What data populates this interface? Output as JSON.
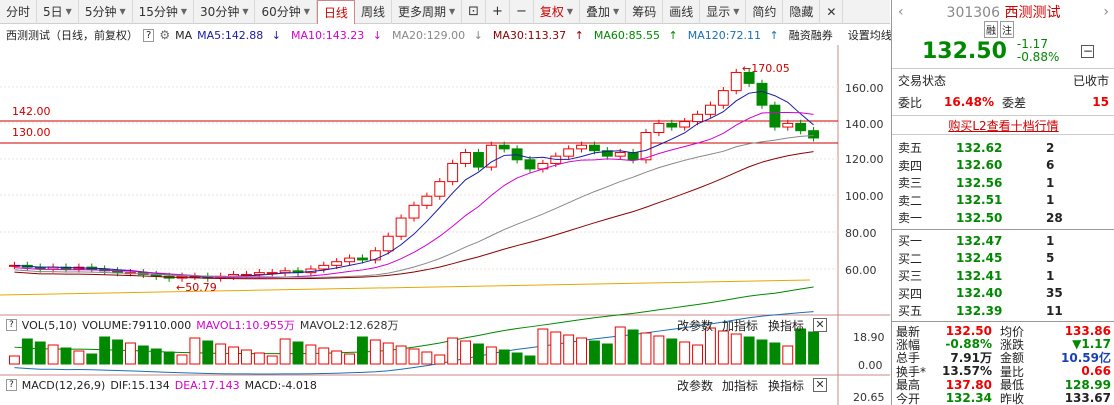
{
  "toolbar": {
    "periods": [
      "分时",
      "5日",
      "5分钟",
      "15分钟",
      "30分钟",
      "60分钟",
      "日线",
      "周线",
      "更多周期"
    ],
    "active": "日线",
    "right_items": [
      "复权",
      "叠加",
      "筹码",
      "画线",
      "显示",
      "简约",
      "隐藏"
    ]
  },
  "main": {
    "title": "西测测试（日线，前复权）",
    "help": "?",
    "ma_label": "MA",
    "ma": [
      {
        "label": "MA5:142.88",
        "color": "#1a1aa6"
      },
      {
        "label": "MA10:143.23",
        "color": "#d400d4"
      },
      {
        "label": "MA20:129.00",
        "color": "#888888"
      },
      {
        "label": "MA30:113.37",
        "color": "#8b0000"
      },
      {
        "label": "MA60:85.55",
        "color": "#008800"
      },
      {
        "label": "MA120:72.11",
        "color": "#1a6fb3"
      }
    ],
    "financing": "融资融券",
    "settings": "设置均线",
    "price_lines": [
      "142.00",
      "130.00"
    ],
    "y_ticks": [
      "160.00",
      "140.00",
      "120.00",
      "100.00",
      "80.00",
      "60.00"
    ],
    "high_label": "170.05",
    "low_label": "50.79"
  },
  "vol": {
    "label": "VOL(5,10)",
    "volume": "VOLUME:79110.000",
    "mavol1": "MAVOL1:10.955万",
    "mavol2": "MAVOL2:12.628万",
    "btn_change": "改参数",
    "btn_add": "加指标",
    "btn_switch": "换指标",
    "y_ticks": [
      "18.90",
      "0.00"
    ]
  },
  "macd": {
    "label": "MACD(12,26,9)",
    "dif": "DIF:15.134",
    "dea": "DEA:17.143",
    "macd": "MACD:-4.018",
    "btn_change": "改参数",
    "btn_add": "加指标",
    "btn_switch": "换指标",
    "y_ticks": [
      "20.65"
    ]
  },
  "quote": {
    "code": "301306",
    "name": "西测测试",
    "tag1": "融",
    "tag2": "注",
    "price": "132.50",
    "change": "-1.17",
    "pct": "-0.88%",
    "status_label": "交易状态",
    "status": "已收市",
    "wb_label": "委比",
    "wb": "16.48%",
    "wc_label": "委差",
    "wc": "15",
    "l2": "购买L2查看十档行情",
    "asks": [
      {
        "l": "卖五",
        "p": "132.62",
        "v": "2"
      },
      {
        "l": "卖四",
        "p": "132.60",
        "v": "6"
      },
      {
        "l": "卖三",
        "p": "132.56",
        "v": "1"
      },
      {
        "l": "卖二",
        "p": "132.51",
        "v": "1"
      },
      {
        "l": "卖一",
        "p": "132.50",
        "v": "28"
      }
    ],
    "bids": [
      {
        "l": "买一",
        "p": "132.47",
        "v": "1"
      },
      {
        "l": "买二",
        "p": "132.45",
        "v": "5"
      },
      {
        "l": "买三",
        "p": "132.41",
        "v": "1"
      },
      {
        "l": "买四",
        "p": "132.40",
        "v": "35"
      },
      {
        "l": "买五",
        "p": "132.39",
        "v": "11"
      }
    ],
    "stats": [
      {
        "l1": "最新",
        "v1": "132.50",
        "c1": "red",
        "l2": "均价",
        "v2": "133.86",
        "c2": "red"
      },
      {
        "l1": "涨幅",
        "v1": "-0.88%",
        "c1": "green",
        "l2": "涨跌",
        "v2": "▼1.17",
        "c2": "green"
      },
      {
        "l1": "总手",
        "v1": "7.91万",
        "c1": "",
        "l2": "金额",
        "v2": "10.59亿",
        "c2": "blue"
      },
      {
        "l1": "换手*",
        "v1": "13.57%",
        "c1": "",
        "l2": "量比",
        "v2": "0.66",
        "c2": "red"
      },
      {
        "l1": "最高",
        "v1": "137.80",
        "c1": "red",
        "l2": "最低",
        "v2": "128.99",
        "c2": "green"
      },
      {
        "l1": "今开",
        "v1": "132.34",
        "c1": "green",
        "l2": "昨收",
        "v2": "133.67",
        "c2": ""
      }
    ]
  }
}
